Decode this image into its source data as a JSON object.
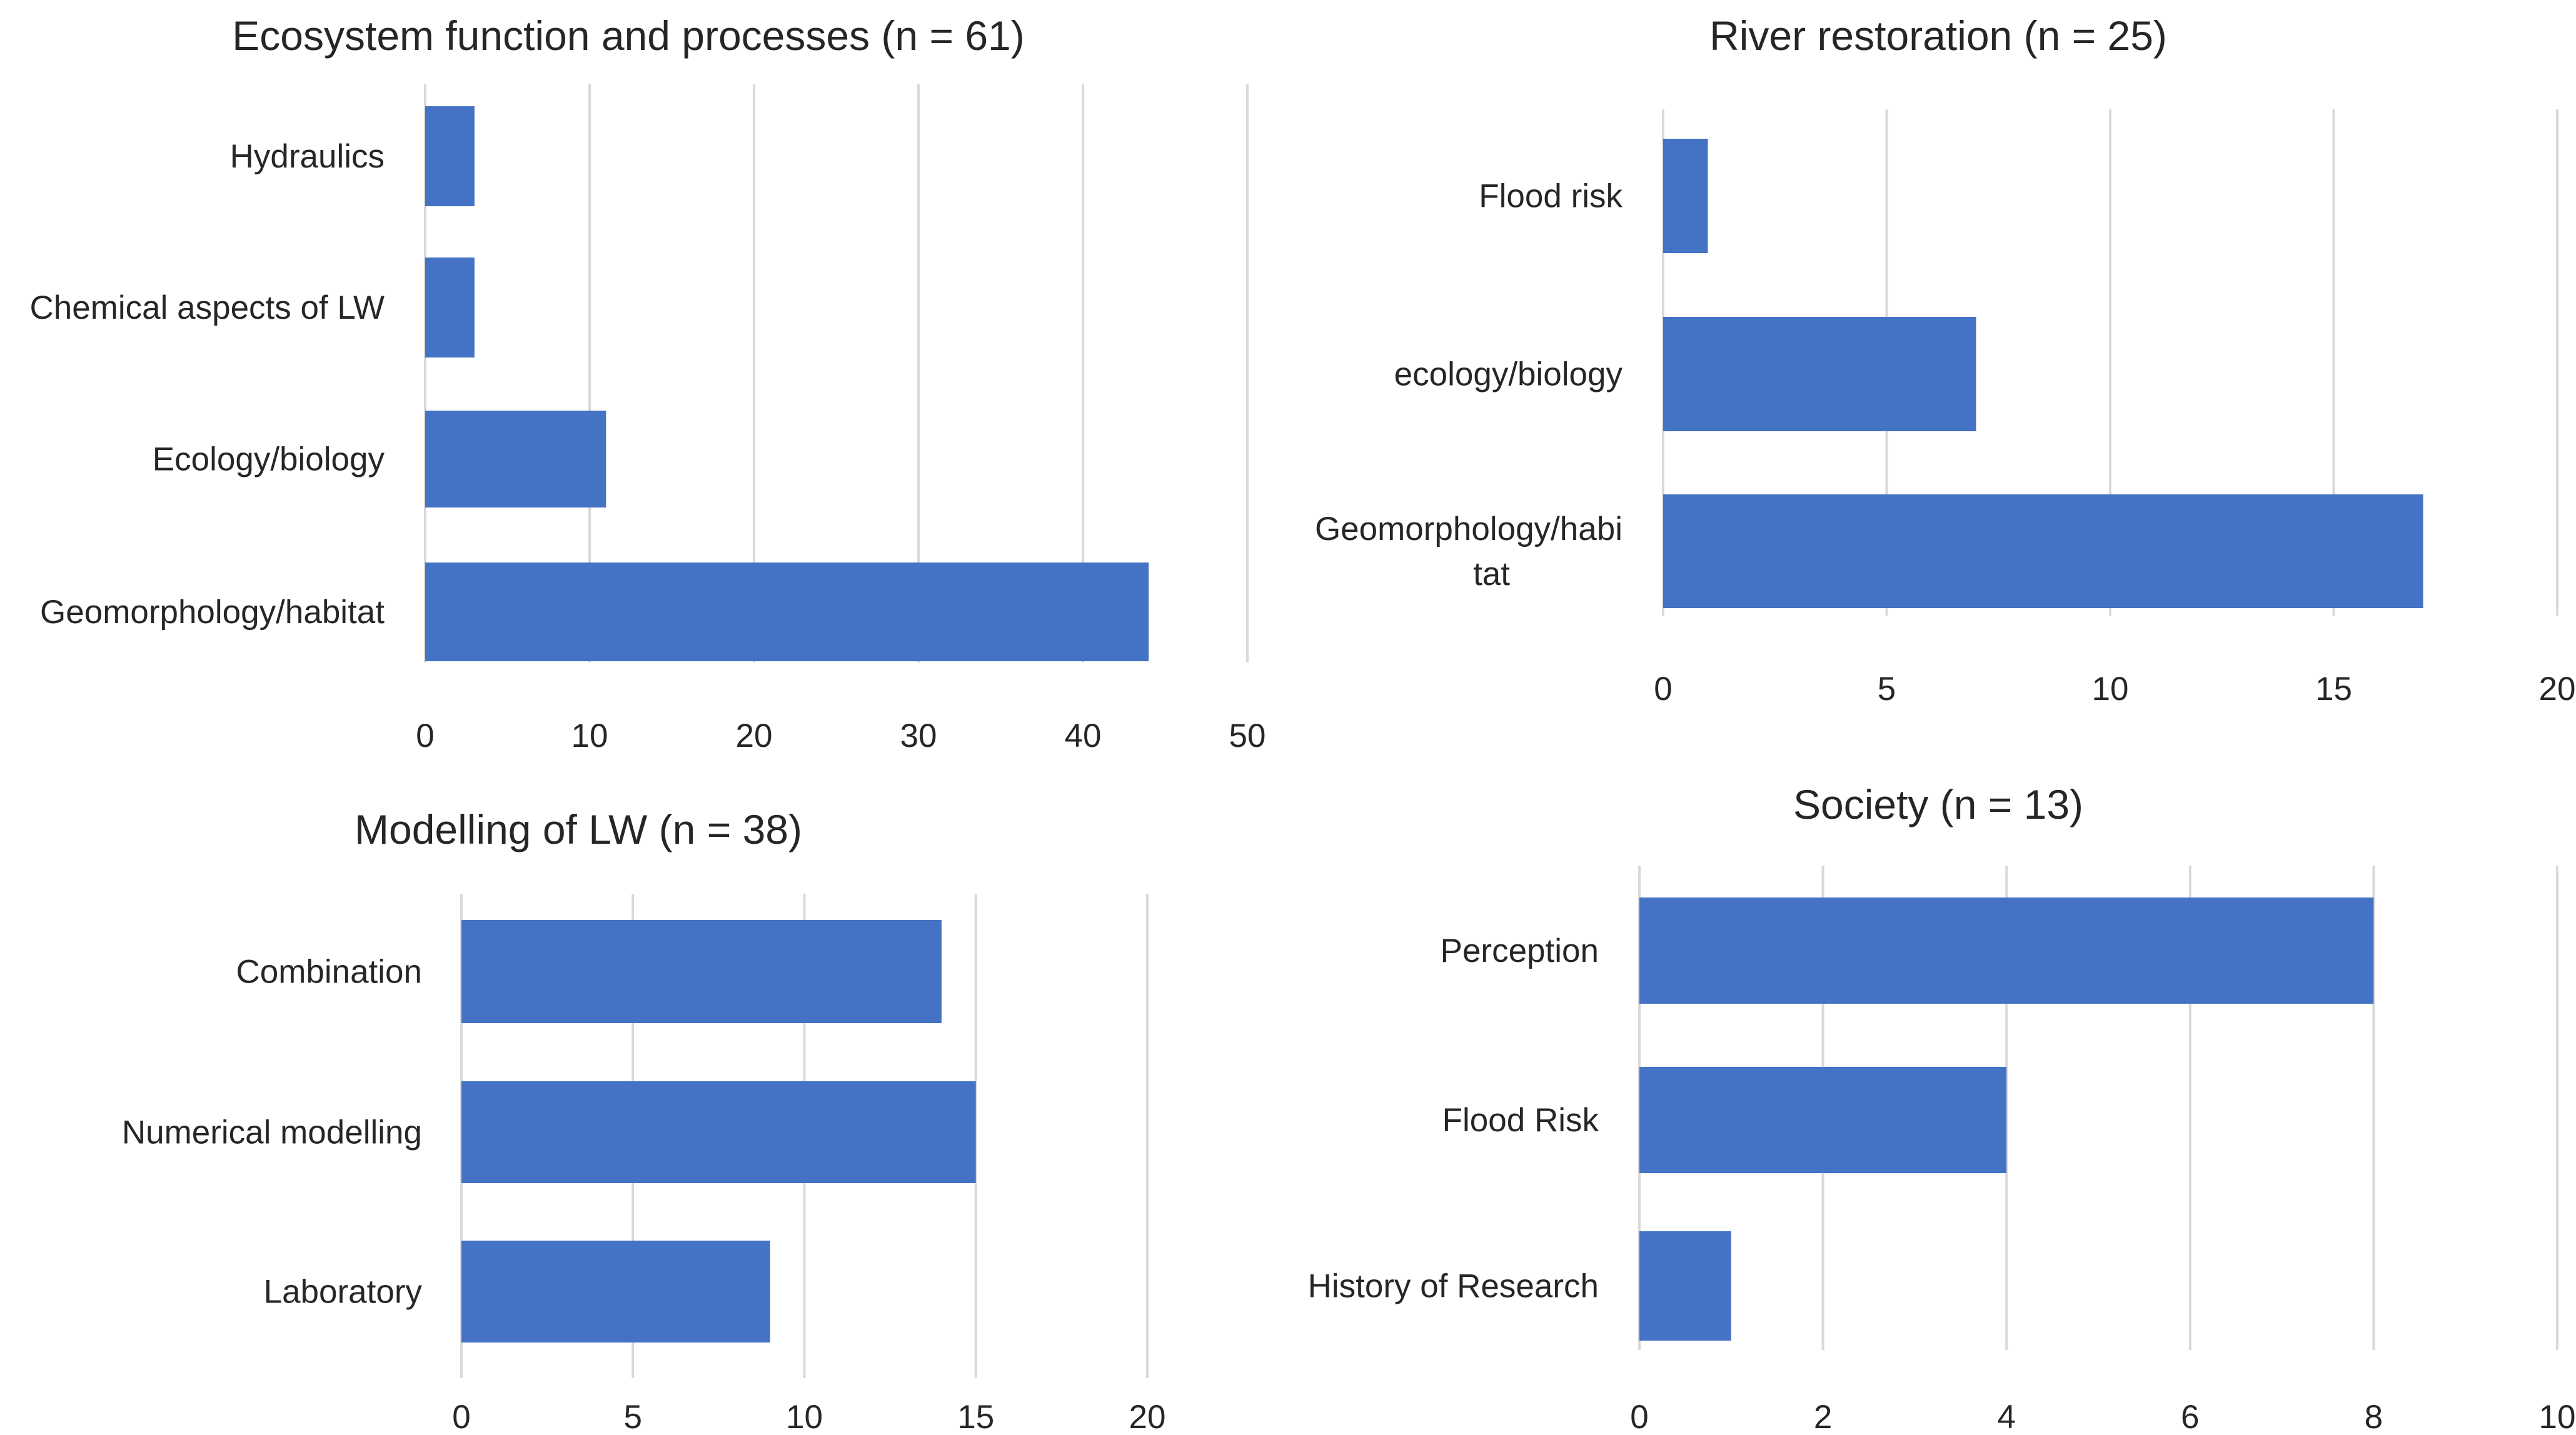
{
  "colors": {
    "bar": "#4472C4",
    "grid": "#d9d9d9",
    "text": "#262626"
  },
  "chart_data": [
    {
      "type": "bar",
      "orientation": "horizontal",
      "title": "Ecosystem function and processes (n = 61)",
      "categories": [
        "Hydraulics",
        "Chemical aspects of LW",
        "Ecology/biology",
        "Geomorphology/habitat"
      ],
      "values": [
        3,
        3,
        11,
        44
      ],
      "xlim": [
        0,
        50
      ],
      "xticks": [
        "0",
        "10",
        "20",
        "30",
        "40",
        "50"
      ],
      "grid": true
    },
    {
      "type": "bar",
      "orientation": "horizontal",
      "title": "River restoration (n = 25)",
      "categories": [
        "Flood risk",
        "ecology/biology",
        "Geomorphology/habi tat"
      ],
      "values": [
        1,
        7,
        17
      ],
      "xlim": [
        0,
        20
      ],
      "xticks": [
        "0",
        "5",
        "10",
        "15",
        "20"
      ],
      "grid": true
    },
    {
      "type": "bar",
      "orientation": "horizontal",
      "title": "Modelling of LW (n = 38)",
      "categories": [
        "Combination",
        "Numerical modelling",
        "Laboratory"
      ],
      "values": [
        14,
        15,
        9
      ],
      "xlim": [
        0,
        20
      ],
      "xticks": [
        "0",
        "5",
        "10",
        "15",
        "20"
      ],
      "grid": true
    },
    {
      "type": "bar",
      "orientation": "horizontal",
      "title": "Society (n = 13)",
      "categories": [
        "Perception",
        "Flood Risk",
        "History of Research"
      ],
      "values": [
        8,
        4,
        1
      ],
      "xlim": [
        0,
        10
      ],
      "xticks": [
        "0",
        "2",
        "4",
        "6",
        "8",
        "10"
      ],
      "grid": true
    }
  ]
}
